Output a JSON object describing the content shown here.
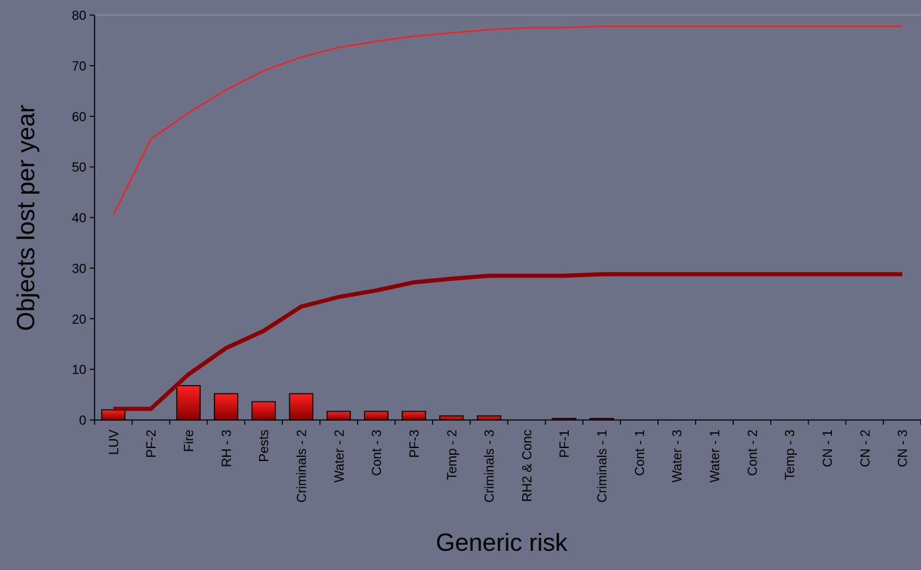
{
  "chart_data": {
    "type": "bar",
    "title": "",
    "xlabel": "Generic risk",
    "ylabel": "Objects lost per year",
    "ylim": [
      0,
      80
    ],
    "yticks": [
      0,
      10,
      20,
      30,
      40,
      50,
      60,
      70,
      80
    ],
    "grid": false,
    "categories": [
      "LUV",
      "PF-2",
      "Fire",
      "RH - 3",
      "Pests",
      "Criminals - 2",
      "Water - 2",
      "Cont - 3",
      "PF-3",
      "Temp - 2",
      "Criminals - 3",
      "RH2 & Conc",
      "PF-1",
      "Criminals - 1",
      "Cont - 1",
      "Water - 3",
      "Water - 1",
      "Cont - 2",
      "Temp - 3",
      "CN - 1",
      "CN - 2",
      "CN - 3"
    ],
    "series": [
      {
        "type": "bar",
        "values": [
          2,
          0,
          6.8,
          5.2,
          3.6,
          5.2,
          1.7,
          1.7,
          1.7,
          0.8,
          0.8,
          0,
          0.3,
          0.3,
          0,
          0,
          0,
          0,
          0,
          0,
          0,
          0
        ]
      },
      {
        "type": "line",
        "values": [
          2.2,
          2.2,
          9,
          14.2,
          17.6,
          22.4,
          24.3,
          25.6,
          27.2,
          27.9,
          28.5,
          28.5,
          28.5,
          28.8,
          28.8,
          28.8,
          28.8,
          28.8,
          28.8,
          28.8,
          28.8,
          28.8
        ]
      },
      {
        "type": "line",
        "values": [
          40.5,
          55.5,
          60.7,
          65.2,
          69,
          71.7,
          73.6,
          74.8,
          75.8,
          76.5,
          77.1,
          77.5,
          77.5,
          77.8,
          77.8,
          77.8,
          77.8,
          77.8,
          77.8,
          77.8,
          77.8,
          77.8
        ]
      }
    ],
    "colors": {
      "background": "#6c7188",
      "bar_light": "#ff1a1a",
      "bar_dark": "#8a0000",
      "cumulative_line": "#8b0000",
      "upper_line": "#ff1a1a",
      "axis": "#000000",
      "top_gridline": "#9a9aa8"
    }
  }
}
